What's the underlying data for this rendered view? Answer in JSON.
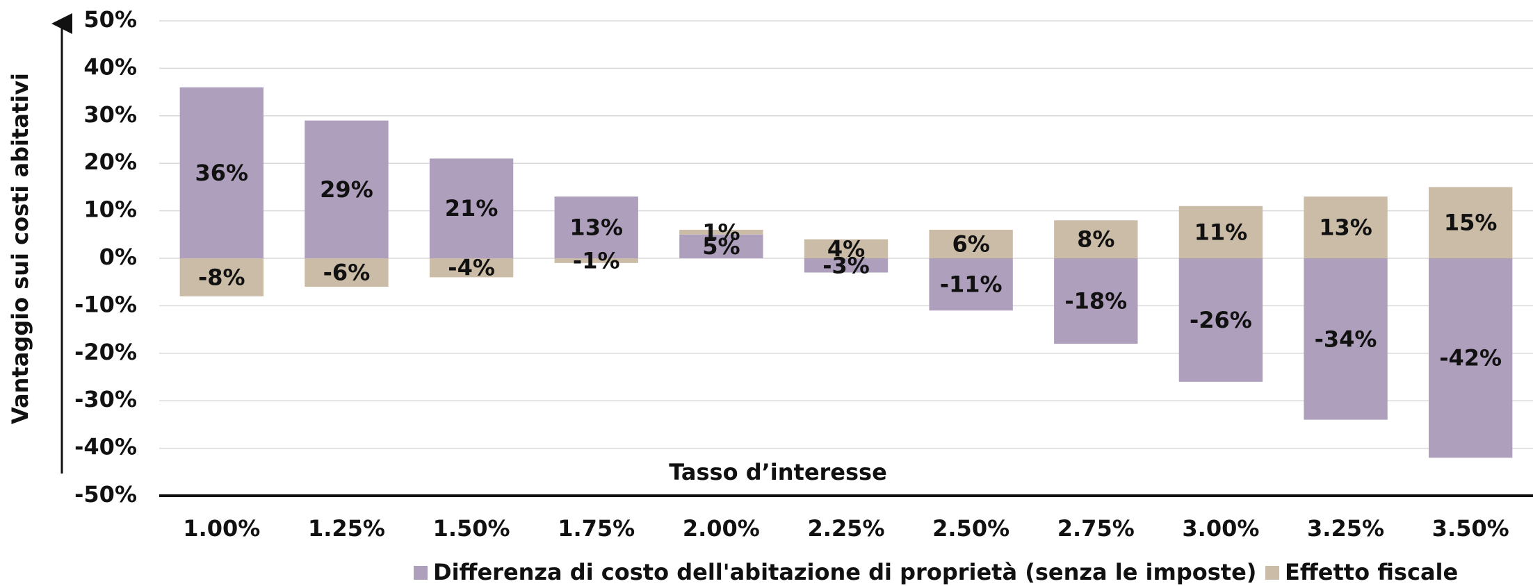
{
  "chart_data": {
    "type": "bar",
    "stacked": true,
    "x_label": "Tasso d’interesse",
    "y_label": "Vantaggio sui costi abitativi",
    "categories": [
      "1.00%",
      "1.25%",
      "1.50%",
      "1.75%",
      "2.00%",
      "2.25%",
      "2.50%",
      "2.75%",
      "3.00%",
      "3.25%",
      "3.50%"
    ],
    "series": [
      {
        "name": "Differenza di costo dell'abitazione di proprietà (senza le imposte)",
        "color": "#ae9fbd",
        "values": [
          36,
          29,
          21,
          13,
          5,
          -3,
          -11,
          -18,
          -26,
          -34,
          -42
        ],
        "value_labels": [
          "36%",
          "29%",
          "21%",
          "13%",
          "5%",
          "-3%",
          "-11%",
          "-18%",
          "-26%",
          "-34%",
          "-42%"
        ]
      },
      {
        "name": "Effetto fiscale",
        "color": "#cbbca7",
        "values": [
          -8,
          -6,
          -4,
          -1,
          1,
          4,
          6,
          8,
          11,
          13,
          15
        ],
        "value_labels": [
          "-8%",
          "-6%",
          "-4%",
          "-1%",
          "1%",
          "4%",
          "6%",
          "8%",
          "11%",
          "13%",
          "15%"
        ]
      }
    ],
    "ylim": [
      -50,
      50
    ],
    "yticks": [
      {
        "value": -50,
        "label": "-50%"
      },
      {
        "value": -40,
        "label": "-40%"
      },
      {
        "value": -30,
        "label": "-30%"
      },
      {
        "value": -20,
        "label": "-20%"
      },
      {
        "value": -10,
        "label": "-10%"
      },
      {
        "value": 0,
        "label": "0%"
      },
      {
        "value": 10,
        "label": "10%"
      },
      {
        "value": 20,
        "label": "20%"
      },
      {
        "value": 30,
        "label": "30%"
      },
      {
        "value": 40,
        "label": "40%"
      },
      {
        "value": 50,
        "label": "50%"
      }
    ],
    "grid": true
  }
}
